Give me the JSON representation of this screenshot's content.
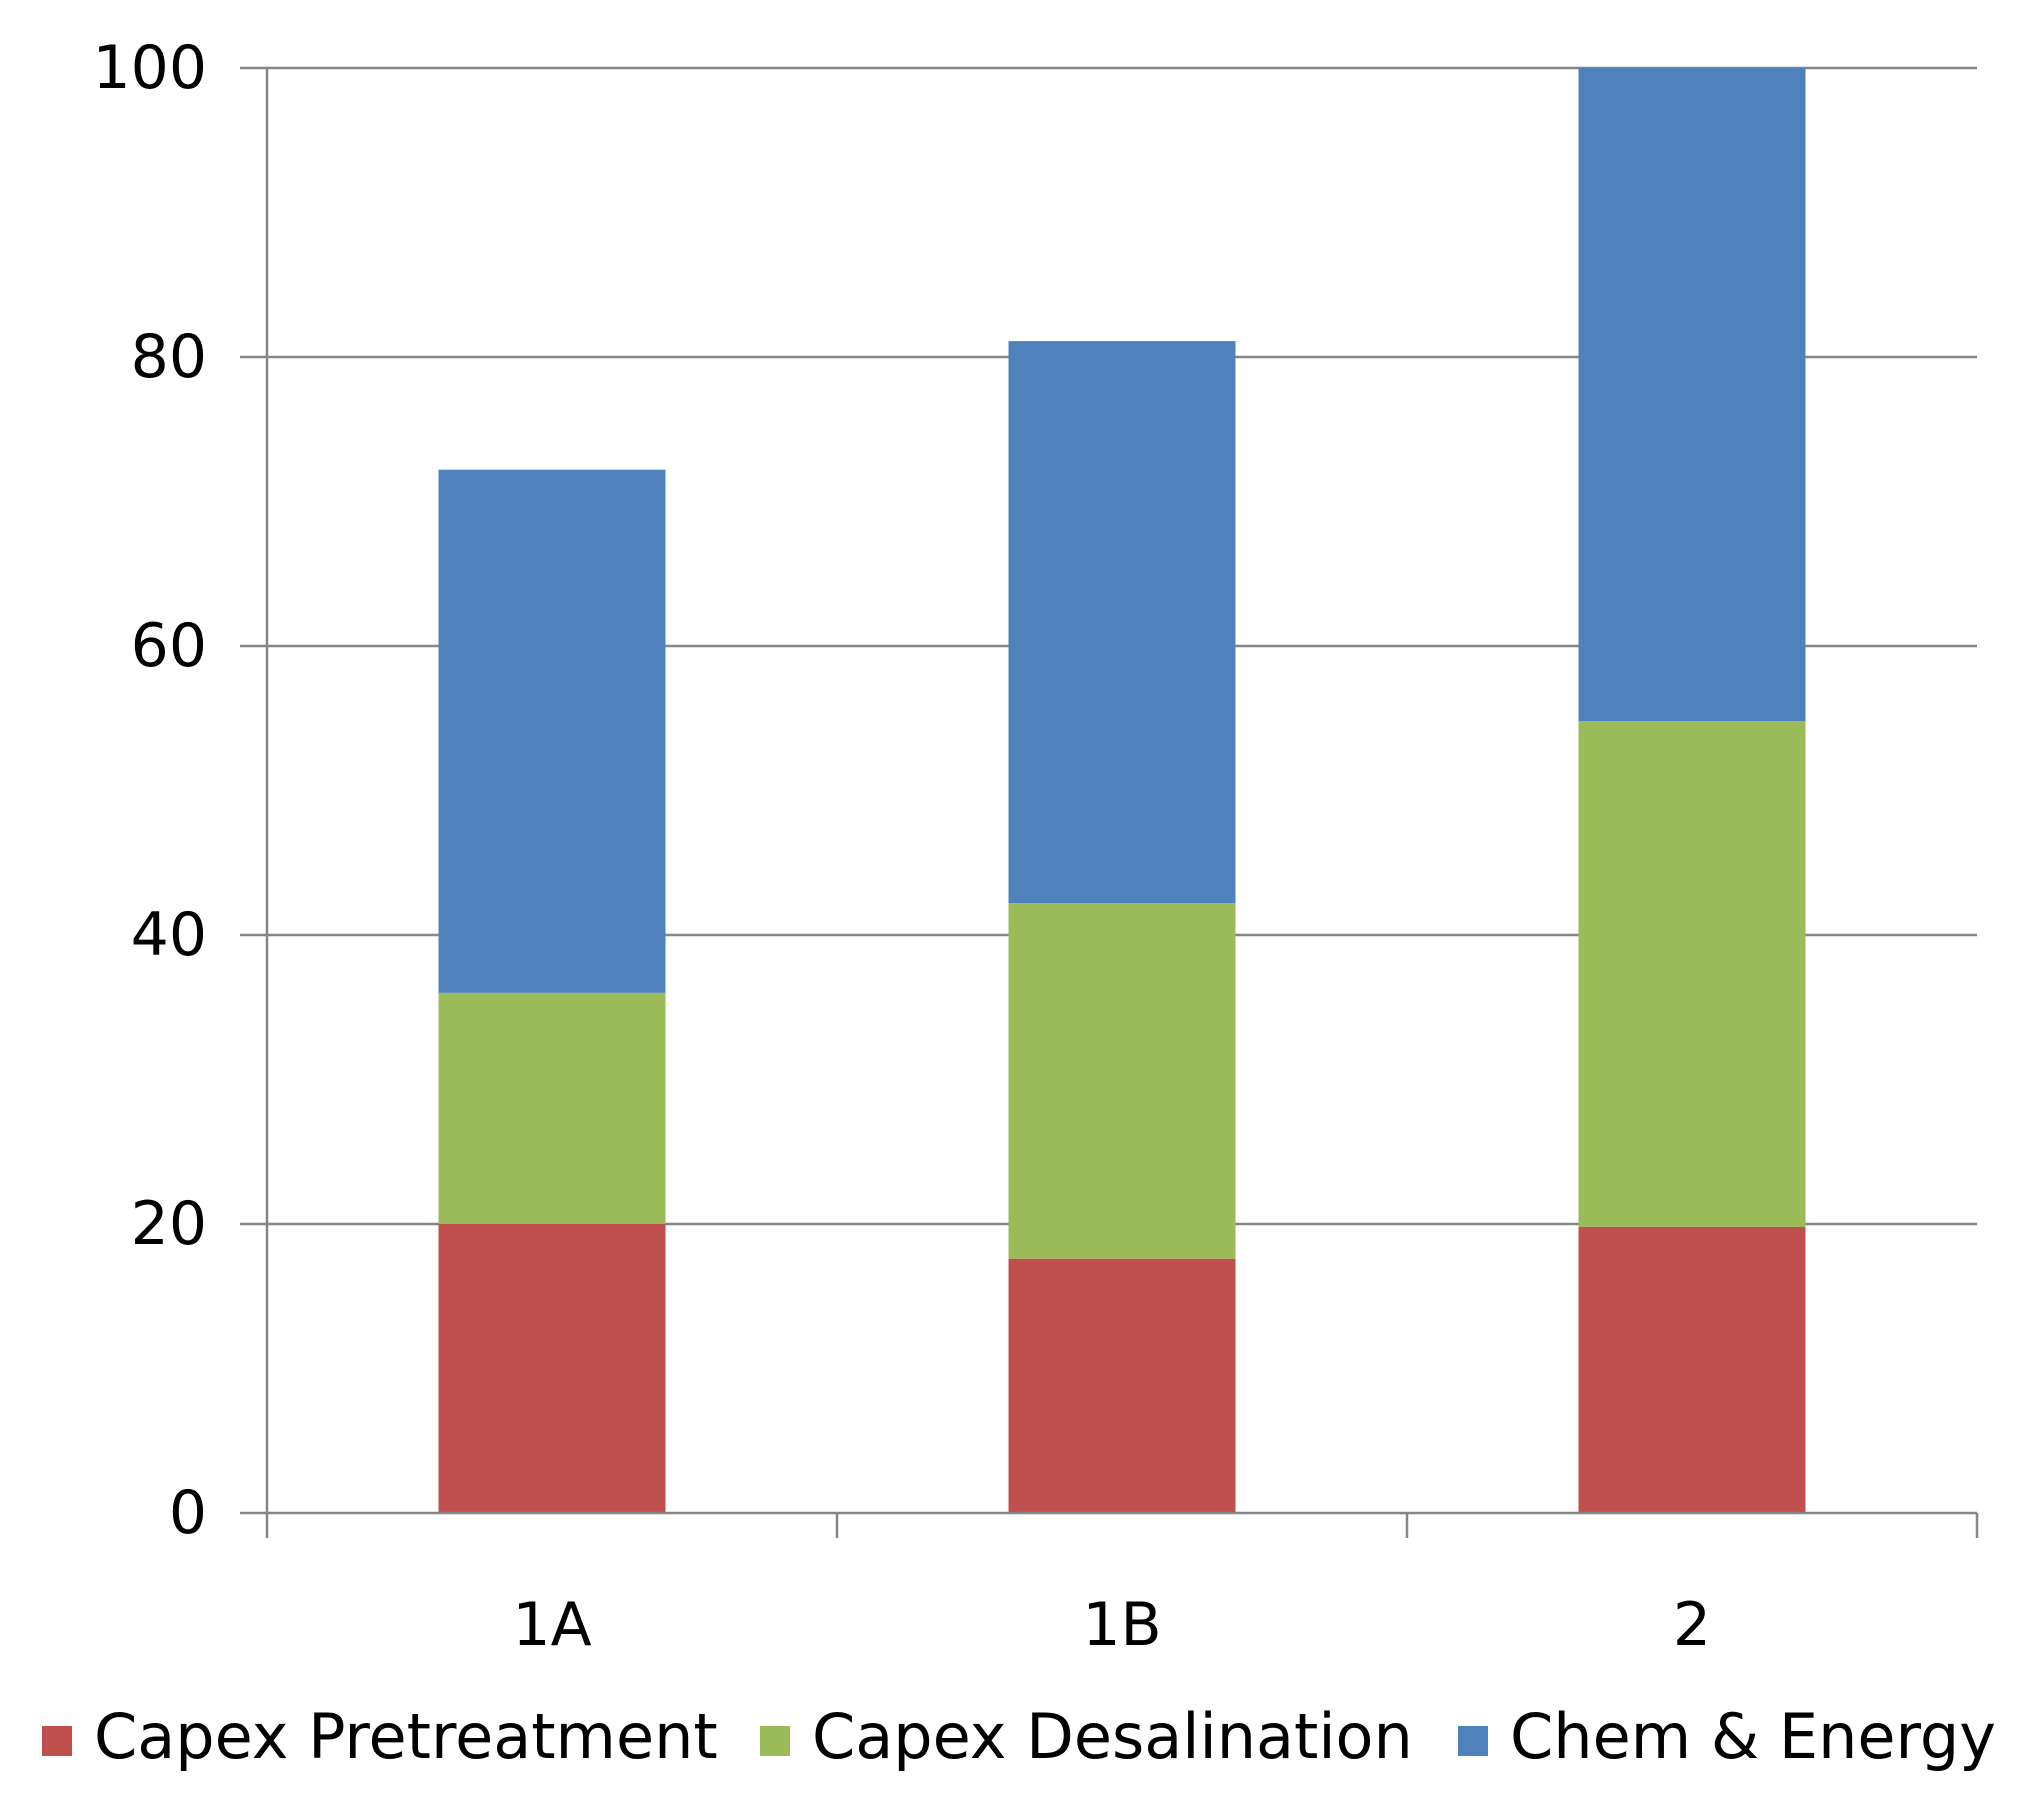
{
  "chart_data": {
    "type": "bar",
    "stacked": true,
    "title": "",
    "xlabel": "",
    "ylabel": "",
    "categories": [
      "1A",
      "1B",
      "2"
    ],
    "series": [
      {
        "name": "Capex Pretreatment",
        "color": "#c0504d",
        "values": [
          20,
          17.6,
          19.8
        ]
      },
      {
        "name": "Capex Desalination",
        "color": "#9bbb59",
        "values": [
          16,
          24.6,
          35
        ]
      },
      {
        "name": "Chem & Energy",
        "color": "#4f81bd",
        "values": [
          36.2,
          38.9,
          45.2
        ]
      }
    ],
    "ylim": [
      0,
      100
    ],
    "yticks": [
      "0",
      "20",
      "40",
      "60",
      "80",
      "100"
    ],
    "grid": true,
    "legend_position": "bottom"
  }
}
